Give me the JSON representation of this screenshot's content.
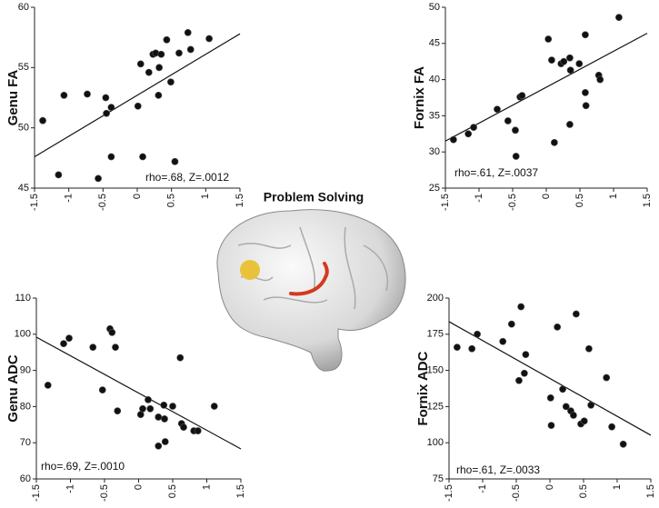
{
  "title": "Problem Solving",
  "chart_data": [
    {
      "type": "scatter",
      "ylabel": "Genu FA",
      "annotation": "rho=.68, Z=.0012",
      "color": "#111111",
      "x": [
        -1.38,
        -1.15,
        -1.07,
        -0.73,
        -0.46,
        -0.45,
        -0.38,
        -0.38,
        -0.57,
        0.01,
        0.05,
        0.08,
        0.17,
        0.23,
        0.27,
        0.31,
        0.32,
        0.35,
        0.43,
        0.49,
        0.55,
        0.61,
        0.74,
        0.78,
        1.05
      ],
      "y": [
        50.6,
        46.1,
        52.7,
        52.8,
        52.5,
        51.2,
        51.7,
        47.6,
        45.8,
        51.8,
        55.3,
        47.6,
        54.6,
        56.1,
        56.2,
        52.7,
        55.0,
        56.1,
        57.3,
        53.8,
        47.2,
        56.2,
        57.9,
        56.5,
        57.4
      ],
      "fit": {
        "x": [
          -1.5,
          1.5
        ],
        "y": [
          47.6,
          57.8
        ]
      },
      "xlim": [
        -1.5,
        1.5
      ],
      "ylim": [
        45,
        60
      ],
      "xticks": [
        -1.5,
        -1,
        -0.5,
        0,
        0.5,
        1,
        1.5
      ],
      "yticks": [
        45,
        50,
        55,
        60
      ]
    },
    {
      "type": "scatter",
      "ylabel": "Fornix FA",
      "annotation": "rho=.61, Z=.0037",
      "color": "#111111",
      "x": [
        -1.38,
        -1.16,
        -1.08,
        -0.73,
        -0.57,
        -0.46,
        -0.39,
        -0.36,
        -0.45,
        0.03,
        0.08,
        0.12,
        0.22,
        0.26,
        0.35,
        0.36,
        0.35,
        0.49,
        0.58,
        0.58,
        0.59,
        0.78,
        0.8,
        1.08
      ],
      "y": [
        31.7,
        32.5,
        33.4,
        35.9,
        34.3,
        33.0,
        37.6,
        37.8,
        29.4,
        45.6,
        42.7,
        31.3,
        42.2,
        42.5,
        43.0,
        41.3,
        33.8,
        42.2,
        38.2,
        46.2,
        36.4,
        40.6,
        40.0,
        48.6
      ],
      "fit": {
        "x": [
          -1.5,
          1.5
        ],
        "y": [
          31.5,
          46.4
        ]
      },
      "xlim": [
        -1.5,
        1.5
      ],
      "ylim": [
        25,
        50
      ],
      "xticks": [
        -1.5,
        -1,
        -0.5,
        0,
        0.5,
        1,
        1.5
      ],
      "yticks": [
        25,
        30,
        35,
        40,
        45,
        50
      ]
    },
    {
      "type": "scatter",
      "ylabel": "Genu ADC",
      "annotation": "rho=.69, Z=.0010",
      "color": "#111111",
      "x": [
        -1.33,
        -1.1,
        -1.02,
        -0.67,
        -0.53,
        -0.42,
        -0.39,
        -0.34,
        -0.31,
        0.03,
        0.06,
        0.14,
        0.17,
        0.29,
        0.37,
        0.38,
        0.29,
        0.39,
        0.5,
        0.61,
        0.63,
        0.66,
        0.81,
        0.87,
        1.11
      ],
      "y": [
        85.9,
        97.4,
        98.9,
        96.4,
        84.6,
        101.5,
        100.5,
        96.4,
        78.8,
        77.8,
        79.4,
        81.9,
        79.4,
        77.1,
        80.4,
        76.6,
        69.1,
        70.3,
        80.1,
        93.5,
        75.3,
        74.3,
        73.3,
        73.3,
        80.1
      ],
      "fit": {
        "x": [
          -1.5,
          1.5
        ],
        "y": [
          99.2,
          68.3
        ]
      },
      "xlim": [
        -1.5,
        1.5
      ],
      "ylim": [
        60,
        110
      ],
      "xticks": [
        -1.5,
        -1,
        -0.5,
        0,
        0.5,
        1,
        1.5
      ],
      "yticks": [
        60,
        70,
        80,
        90,
        100,
        110
      ]
    },
    {
      "type": "scatter",
      "ylabel": "Fornix ADC",
      "annotation": "rho=.61, Z=.0033",
      "color": "#111111",
      "x": [
        -1.38,
        -1.16,
        -1.08,
        -0.7,
        -0.57,
        -0.46,
        -0.43,
        -0.38,
        -0.36,
        0.01,
        0.02,
        0.11,
        0.19,
        0.24,
        0.31,
        0.35,
        0.39,
        0.46,
        0.51,
        0.58,
        0.61,
        0.84,
        0.92,
        1.09
      ],
      "y": [
        166,
        165,
        175,
        170,
        182,
        143,
        194,
        148,
        161,
        131,
        112,
        180,
        137,
        125,
        122,
        119,
        189,
        113,
        115,
        165,
        126,
        145,
        111,
        99
      ],
      "fit": {
        "x": [
          -1.5,
          1.5
        ],
        "y": [
          183.7,
          105.2
        ]
      },
      "xlim": [
        -1.5,
        1.5
      ],
      "ylim": [
        75,
        200
      ],
      "xticks": [
        -1.5,
        -1,
        -0.5,
        0,
        0.5,
        1,
        1.5
      ],
      "yticks": [
        75,
        100,
        125,
        150,
        175,
        200
      ]
    }
  ]
}
